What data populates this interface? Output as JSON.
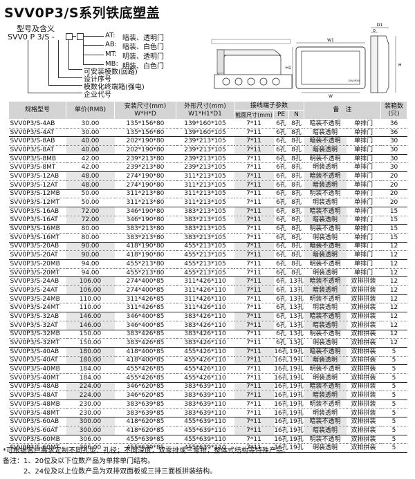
{
  "title": "SVV0P3/S系列铁底塑盖",
  "legend": {
    "heading": "型号及含义",
    "model_code": "SVV0 P 3/S -",
    "options": [
      {
        "code": "AT:",
        "desc": "暗装、透明门"
      },
      {
        "code": "AB:",
        "desc": "暗装、白色门"
      },
      {
        "code": "MT:",
        "desc": "明装、透明门"
      },
      {
        "code": "MB:",
        "desc": "明装、白色门"
      }
    ],
    "meanings": [
      "可安装模数(回路)",
      "设计序号",
      "模数化终端箱(强电)",
      "企业代号"
    ]
  },
  "diagram": {
    "dims": [
      "D1",
      "D",
      "W1",
      "H1",
      "H",
      "W"
    ],
    "panel_label": "SVV0P3/S"
  },
  "table": {
    "headers": {
      "model": "规格型号",
      "price": "单价(RMB)",
      "install": "安装尺寸(mm)",
      "install_sub": "W*H*D",
      "outer": "外形尺寸(mm)",
      "outer_sub": "W1*H1*D1",
      "terminal": "接线端子参数",
      "section": "截面尺寸(mm)",
      "pe": "PE",
      "n": "N",
      "remark": "备　注",
      "boxes": "装箱数(只)"
    },
    "rows": [
      [
        "SVV0P3/S-4AB",
        "30.00",
        "135*156*80",
        "139*160*105",
        "7*11",
        "6孔",
        "8孔",
        "暗装不透明",
        "单排门",
        "36"
      ],
      [
        "SVV0P3/S-4AT",
        "30.00",
        "135*156*80",
        "139*160*105",
        "7*11",
        "6孔",
        "8孔",
        "暗装透明",
        "单排门",
        "36"
      ],
      [
        "SVV0P3/S-8AB",
        "40.00",
        "202*190*80",
        "239*213*105",
        "7*11",
        "6孔",
        "8孔",
        "暗装不透明",
        "单排门",
        "30"
      ],
      [
        "SVV0P3/S-8AT",
        "40.00",
        "202*190*80",
        "239*213*105",
        "7*11",
        "6孔",
        "8孔",
        "暗装透明",
        "单排门",
        "30"
      ],
      [
        "SVV0P3/S-8MB",
        "42.00",
        "239*213*80",
        "239*213*105",
        "7*11",
        "6孔",
        "8孔",
        "明装不透明",
        "单排门",
        "30"
      ],
      [
        "SVV0P3/S-8MT",
        "42.00",
        "239*213*80",
        "239*213*105",
        "7*11",
        "6孔",
        "8孔",
        "明装透明",
        "单排门",
        "30"
      ],
      [
        "SVV0P3/S-12AB",
        "48.00",
        "274*190*80",
        "311*213*105",
        "7*11",
        "6孔",
        "8孔",
        "暗装不透明",
        "单排门",
        "20"
      ],
      [
        "SVV0P3/S-12AT",
        "48.00",
        "274*190*80",
        "311*213*105",
        "7*11",
        "6孔",
        "8孔",
        "暗装透明",
        "单排门",
        "20"
      ],
      [
        "SVV0P3/S-12MB",
        "50.00",
        "311*213*80",
        "311*213*105",
        "7*11",
        "6孔",
        "8孔",
        "明装不透明",
        "单排门",
        "20"
      ],
      [
        "SVV0P3/S-12MT",
        "50.00",
        "311*213*80",
        "311*213*105",
        "7*11",
        "6孔",
        "8孔",
        "明装透明",
        "单排门",
        "20"
      ],
      [
        "SVV0P3/S-16AB",
        "72.00",
        "346*190*80",
        "383*213*105",
        "7*11",
        "6孔",
        "8孔",
        "暗装不透明",
        "单排门",
        "15"
      ],
      [
        "SVV0P3/S-16AT",
        "72.00",
        "346*190*80",
        "383*213*105",
        "7*11",
        "6孔",
        "8孔",
        "暗装透明",
        "单排门",
        "15"
      ],
      [
        "SVV0P3/S-16MB",
        "80.00",
        "383*213*80",
        "383*213*105",
        "7*11",
        "6孔",
        "8孔",
        "明装不透明",
        "单排门",
        "15"
      ],
      [
        "SVV0P3/S-16MT",
        "80.00",
        "383*213*80",
        "383*213*105",
        "7*11",
        "6孔",
        "8孔",
        "明装透明",
        "单排门",
        "15"
      ],
      [
        "SVV0P3/S-20AB",
        "90.00",
        "418*190*80",
        "455*213*105",
        "7*11",
        "6孔",
        "8孔",
        "暗装不透明",
        "单排门",
        "12"
      ],
      [
        "SVV0P3/S-20AT",
        "90.00",
        "418*190*80",
        "455*213*105",
        "7*11",
        "6孔",
        "8孔",
        "暗装透明",
        "单排门",
        "12"
      ],
      [
        "SVV0P3/S-20MB",
        "94.00",
        "455*213*80",
        "455*213*105",
        "7*11",
        "6孔",
        "8孔",
        "明装不透明",
        "单排门",
        "12"
      ],
      [
        "SVV0P3/S-20MT",
        "94.00",
        "455*213*80",
        "455*213*105",
        "7*11",
        "6孔",
        "8孔",
        "明装透明",
        "单排门",
        "12"
      ],
      [
        "SVV0P3/S-24AB",
        "106.00",
        "274*400*85",
        "311*426*110",
        "7*11",
        "6孔",
        "13孔",
        "暗装不透明",
        "双排拼装",
        "12"
      ],
      [
        "SVV0P3/S-24AT",
        "106.00",
        "274*400*85",
        "311*426*110",
        "7*11",
        "6孔",
        "13孔",
        "暗装透明",
        "双排拼装",
        "12"
      ],
      [
        "SVV0P3/S-24MB",
        "110.00",
        "311*426*85",
        "311*426*110",
        "7*11",
        "6孔",
        "13孔",
        "明装不透明",
        "双排拼装",
        "12"
      ],
      [
        "SVV0P3/S-24MT",
        "110.00",
        "311*426*85",
        "311*426*110",
        "7*11",
        "6孔",
        "13孔",
        "明装透明",
        "双排拼装",
        "12"
      ],
      [
        "SVV0P3/S-32AB",
        "146.00",
        "346*400*85",
        "383*426*110",
        "7*11",
        "6孔",
        "13孔",
        "暗装不透明",
        "双排拼装",
        "12"
      ],
      [
        "SVV0P3/S-32AT",
        "146.00",
        "346*400*85",
        "383*426*110",
        "7*11",
        "6孔",
        "13孔",
        "暗装透明",
        "双排拼装",
        "12"
      ],
      [
        "SVV0P3/S-32MB",
        "150.00",
        "383*426*85",
        "383*426*110",
        "7*11",
        "6孔",
        "13孔",
        "明装不透明",
        "双排拼装",
        "12"
      ],
      [
        "SVV0P3/S-32MT",
        "150.00",
        "383*426*85",
        "383*426*110",
        "7*11",
        "6孔",
        "13孔",
        "明装透明",
        "双排拼装",
        "12"
      ],
      [
        "SVV0P3/S-40AB",
        "180.00",
        "418*400*85",
        "455*426*110",
        "7*11",
        "16孔",
        "19孔",
        "暗装不透明",
        "双排拼装",
        "5"
      ],
      [
        "SVV0P3/S-40AT",
        "180.00",
        "418*400*85",
        "455*426*110",
        "7*11",
        "16孔",
        "19孔",
        "暗装透明",
        "双排拼装",
        "5"
      ],
      [
        "SVV0P3/S-40MB",
        "184.00",
        "455*426*85",
        "455*426*110",
        "7*11",
        "16孔",
        "19孔",
        "明装不透明",
        "双排拼装",
        "5"
      ],
      [
        "SVV0P3/S-40MT",
        "184.00",
        "455*426*85",
        "455*426*110",
        "7*11",
        "16孔",
        "19孔",
        "明装透明",
        "双排拼装",
        "5"
      ],
      [
        "SVV0P3/S-48AB",
        "224.00",
        "346*620*85",
        "383*639*110",
        "7*11",
        "16孔",
        "19孔",
        "暗装不透明",
        "双排拼装",
        "5"
      ],
      [
        "SVV0P3/S-48AT",
        "224.00",
        "346*620*85",
        "383*639*110",
        "7*11",
        "16孔",
        "19孔",
        "暗装透明",
        "双排拼装",
        "5"
      ],
      [
        "SVV0P3/S-48MB",
        "230.00",
        "383*639*85",
        "383*639*110",
        "7*11",
        "16孔",
        "19孔",
        "明装不透明",
        "双排拼装",
        "5"
      ],
      [
        "SVV0P3/S-48MT",
        "230.00",
        "383*639*85",
        "383*639*110",
        "7*11",
        "16孔",
        "19孔",
        "明装透明",
        "双排拼装",
        "5"
      ],
      [
        "SVV0P3/S-60AB",
        "300.00",
        "418*620*85",
        "455*639*110",
        "7*11",
        "16孔",
        "19孔",
        "暗装不透明",
        "双排拼装",
        "5"
      ],
      [
        "SVV0P3/S-60AT",
        "300.00",
        "418*620*85",
        "455*639*110",
        "7*11",
        "16孔",
        "19孔",
        "暗装透明",
        "双排拼装",
        "5"
      ],
      [
        "SVV0P3/S-60MB",
        "306.00",
        "455*639*85",
        "455*639*110",
        "7*11",
        "16孔",
        "19孔",
        "明装不透明",
        "双排拼装",
        "5"
      ],
      [
        "SVV0P3/S-60MT",
        "306.00",
        "455*639*85",
        "455*639*110",
        "7*11",
        "16孔",
        "19孔",
        "明装透明",
        "双排拼装",
        "5"
      ]
    ]
  },
  "notes": [
    "*可根据客户需求定制不同孔型、孔径；不同深度，双零排或三零排，整体式结构等特殊产品。",
    "备注：1、20位及以下位数产品为单排单门结构。",
    "　　　2、24位及以上位数产品为双排双面板或三排三面板拼装结构。"
  ]
}
